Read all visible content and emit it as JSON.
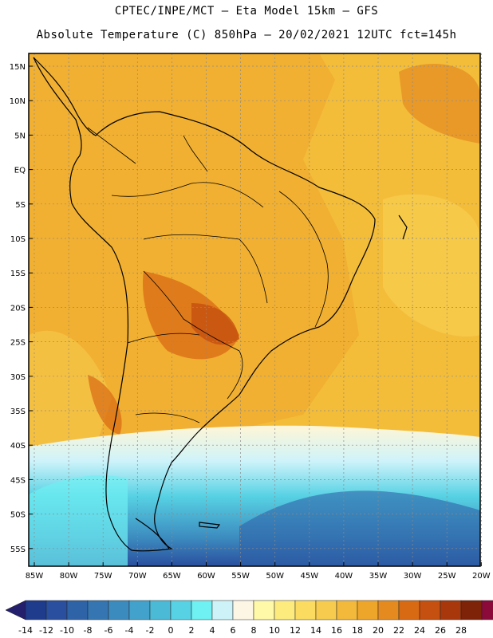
{
  "header": {
    "line1": "CPTEC/INPE/MCT –  Eta Model 15km – GFS",
    "line2": "Absolute Temperature (C) 850hPa – 20/02/2021 12UTC fct=145h"
  },
  "map": {
    "lat_labels": [
      "15N",
      "10N",
      "5N",
      "EQ",
      "5S",
      "10S",
      "15S",
      "20S",
      "25S",
      "30S",
      "35S",
      "40S",
      "45S",
      "50S",
      "55S"
    ],
    "lon_labels": [
      "85W",
      "80W",
      "75W",
      "70W",
      "65W",
      "60W",
      "55W",
      "50W",
      "45W",
      "40W",
      "35W",
      "30W",
      "25W",
      "20W"
    ]
  },
  "colorbar": {
    "labels": [
      "-14",
      "-12",
      "-10",
      "-8",
      "-6",
      "-4",
      "-2",
      "0",
      "2",
      "4",
      "6",
      "8",
      "10",
      "12",
      "14",
      "16",
      "18",
      "20",
      "22",
      "24",
      "26",
      "28"
    ],
    "colors": [
      "#1f3b8c",
      "#2a4f9e",
      "#2f63a8",
      "#3576b2",
      "#3c8bbf",
      "#43a2cb",
      "#4bbad6",
      "#57d2e4",
      "#6ff0f2",
      "#cdf3f8",
      "#fef6e4",
      "#fff9a8",
      "#fdeb7e",
      "#fbdc60",
      "#f7cc4e",
      "#f3b93a",
      "#eea62a",
      "#e48a1f",
      "#d96a14",
      "#c5500f",
      "#a8370c",
      "#7e2208",
      "#8b0a3a"
    ],
    "low_arrow_color": "#24206e",
    "high_arrow_color": "#8b0a3a"
  }
}
